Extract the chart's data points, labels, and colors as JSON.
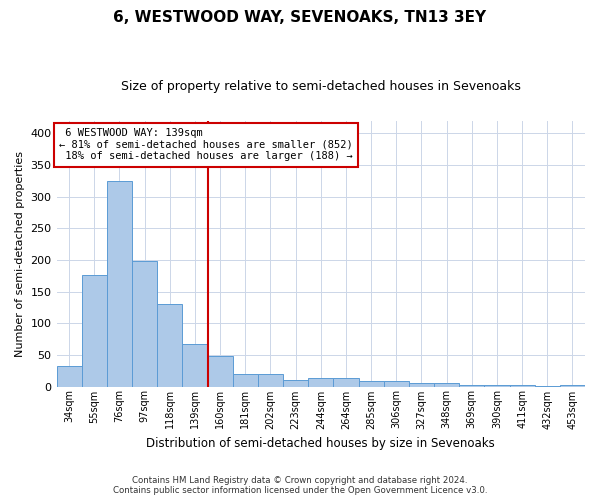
{
  "title": "6, WESTWOOD WAY, SEVENOAKS, TN13 3EY",
  "subtitle": "Size of property relative to semi-detached houses in Sevenoaks",
  "xlabel": "Distribution of semi-detached houses by size in Sevenoaks",
  "ylabel": "Number of semi-detached properties",
  "categories": [
    "34sqm",
    "55sqm",
    "76sqm",
    "97sqm",
    "118sqm",
    "139sqm",
    "160sqm",
    "181sqm",
    "202sqm",
    "223sqm",
    "244sqm",
    "264sqm",
    "285sqm",
    "306sqm",
    "327sqm",
    "348sqm",
    "369sqm",
    "390sqm",
    "411sqm",
    "432sqm",
    "453sqm"
  ],
  "values": [
    32,
    176,
    325,
    199,
    130,
    67,
    48,
    20,
    20,
    10,
    14,
    14,
    8,
    8,
    6,
    5,
    3,
    3,
    3,
    1,
    2
  ],
  "bar_color": "#adc9e8",
  "bar_edge_color": "#5b9bd5",
  "property_label": "6 WESTWOOD WAY: 139sqm",
  "smaller_pct": 81,
  "smaller_count": 852,
  "larger_pct": 18,
  "larger_count": 188,
  "vline_color": "#cc0000",
  "vline_x_index": 5.5,
  "annotation_box_color": "#cc0000",
  "ylim": [
    0,
    420
  ],
  "yticks": [
    0,
    50,
    100,
    150,
    200,
    250,
    300,
    350,
    400
  ],
  "footer_line1": "Contains HM Land Registry data © Crown copyright and database right 2024.",
  "footer_line2": "Contains public sector information licensed under the Open Government Licence v3.0.",
  "bg_color": "#ffffff",
  "grid_color": "#ccd6e8"
}
